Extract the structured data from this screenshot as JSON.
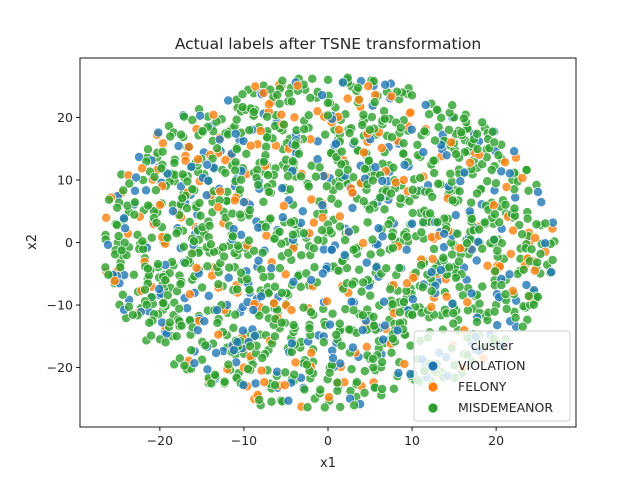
{
  "chart_data": {
    "type": "scatter",
    "title": "Actual labels after TSNE transformation",
    "xlabel": "x1",
    "ylabel": "x2",
    "xlim": [
      -29.5,
      29.5
    ],
    "ylim": [
      -29.5,
      29.5
    ],
    "xticks": [
      -20,
      -10,
      0,
      10,
      20
    ],
    "yticks": [
      -20,
      -10,
      0,
      10,
      20
    ],
    "xtick_labels": [
      "−20",
      "−10",
      "0",
      "10",
      "20"
    ],
    "ytick_labels": [
      "−20",
      "−10",
      "0",
      "10",
      "20"
    ],
    "grid": false,
    "legend": {
      "title": "cluster",
      "location": "lower-right"
    },
    "series": [
      {
        "name": "VIOLATION",
        "color": "#1f77b4",
        "count": 320,
        "points": [
          [
            -6,
            2
          ],
          [
            -3,
            5
          ],
          [
            2,
            -2
          ],
          [
            -12,
            -10
          ],
          [
            5,
            12
          ],
          [
            1,
            -16
          ],
          [
            -9,
            18
          ],
          [
            3,
            8
          ],
          [
            -2,
            -6
          ],
          [
            10,
            3
          ]
        ]
      },
      {
        "name": "FELONY",
        "color": "#ff7f0e",
        "count": 230,
        "points": [
          [
            -14,
            14
          ],
          [
            -6,
            -12
          ],
          [
            9,
            10
          ],
          [
            16,
            -20
          ],
          [
            -20,
            6
          ],
          [
            13,
            -5
          ],
          [
            -4,
            20
          ],
          [
            18,
            14
          ],
          [
            -10,
            -20
          ],
          [
            4,
            -23
          ]
        ]
      },
      {
        "name": "MISDEMEANOR",
        "color": "#2ca02c",
        "count": 1150,
        "points": [
          [
            -25,
            0
          ],
          [
            24,
            -3
          ],
          [
            0,
            26
          ],
          [
            -8,
            -26
          ],
          [
            20,
            -10
          ],
          [
            -18,
            -15
          ],
          [
            15,
            20
          ],
          [
            -22,
            10
          ],
          [
            8,
            -14
          ],
          [
            -1,
            12
          ]
        ]
      }
    ],
    "distribution": "points fill an ellipse centred at (0, 0) with x from about -27 to 27 and y from about -27 to 27; categories are intermixed"
  }
}
